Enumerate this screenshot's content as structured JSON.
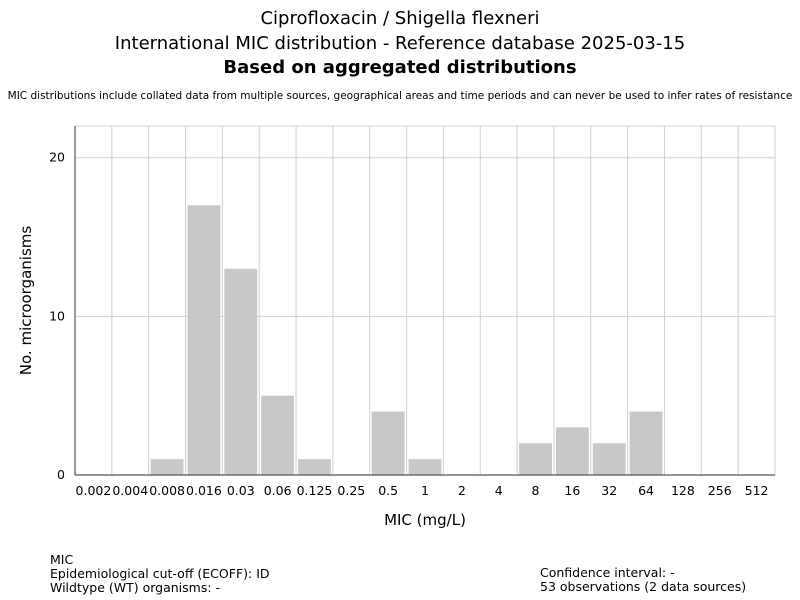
{
  "header": {
    "title_line1": "Ciprofloxacin / Shigella flexneri",
    "title_line2": "International MIC distribution - Reference database 2025-03-15",
    "title_line3": "Based on aggregated distributions",
    "note": "MIC distributions include collated data from multiple sources, geographical areas and time periods and can never be used to infer rates of resistance"
  },
  "chart_data": {
    "type": "bar",
    "categories": [
      "0.002",
      "0.004",
      "0.008",
      "0.016",
      "0.03",
      "0.06",
      "0.125",
      "0.25",
      "0.5",
      "1",
      "2",
      "4",
      "8",
      "16",
      "32",
      "64",
      "128",
      "256",
      "512"
    ],
    "values": [
      0,
      0,
      1,
      17,
      13,
      5,
      1,
      0,
      4,
      1,
      0,
      0,
      2,
      3,
      2,
      4,
      0,
      0,
      0
    ],
    "xlabel": "MIC (mg/L)",
    "ylabel": "No. microorganisms",
    "ylim": [
      0,
      22
    ],
    "yticks": [
      0,
      10,
      20
    ],
    "grid": true,
    "bar_color": "#c8c8c8",
    "grid_color": "#d0d0d0"
  },
  "footer": {
    "mic_label": "MIC",
    "ecoff": "Epidemiological cut-off (ECOFF): ID",
    "wildtype": "Wildtype (WT) organisms:  -",
    "confidence": "Confidence interval: -",
    "observations": "53 observations (2 data sources)"
  }
}
